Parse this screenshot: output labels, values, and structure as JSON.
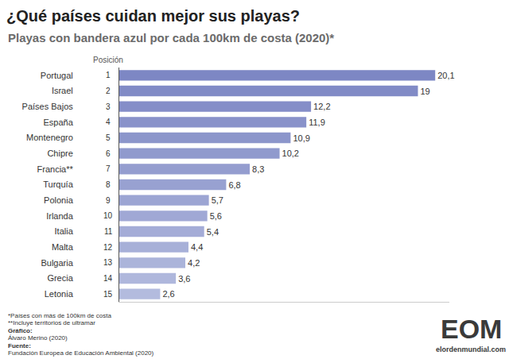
{
  "chart_data": {
    "type": "bar",
    "orientation": "horizontal",
    "title": "¿Qué países cuidan mejor sus playas?",
    "subtitle": "Playas con bandera azul por cada 100km de costa (2020)*",
    "rank_header": "Posición",
    "ranks": [
      1,
      2,
      3,
      4,
      5,
      6,
      7,
      8,
      9,
      10,
      11,
      12,
      13,
      14,
      15
    ],
    "categories": [
      "Portugal",
      "Israel",
      "Países Bajos",
      "España",
      "Montenegro",
      "Chipre",
      "Francia**",
      "Turquía",
      "Polonia",
      "Irlanda",
      "Italia",
      "Malta",
      "Bulgaria",
      "Grecia",
      "Letonia"
    ],
    "values": [
      20.1,
      19,
      12.2,
      11.9,
      10.9,
      10.2,
      8.3,
      6.8,
      5.7,
      5.6,
      5.4,
      4.4,
      4.2,
      3.6,
      2.6
    ],
    "value_labels": [
      "20,1",
      "19",
      "12,2",
      "11,9",
      "10,9",
      "10,2",
      "8,3",
      "6,8",
      "5,7",
      "5,6",
      "5,4",
      "4,4",
      "4,2",
      "3,6",
      "2,6"
    ],
    "colors": [
      "#7d87c4",
      "#818bc6",
      "#858ec8",
      "#8992ca",
      "#8c96cb",
      "#909acd",
      "#949dcf",
      "#98a1d1",
      "#9ca5d3",
      "#a0a8d5",
      "#a4acd7",
      "#a7b0d8",
      "#abb4da",
      "#afb7dc",
      "#b3bbde"
    ],
    "data_labels": true,
    "xlim": [
      0,
      21
    ],
    "xticks": [],
    "tick_labels": "y",
    "grid": false,
    "notes": [
      "*Países con más de 100km de costa",
      "**Incluye territorios de ultramar"
    ],
    "credits": {
      "graphic_label": "Gráfico:",
      "graphic": "Álvaro Merino (2020)",
      "source_label": "Fuente:",
      "source": "Fundación Europea de Educación Ambiental (2020)"
    },
    "logo": {
      "text": "EOM",
      "url": "elordenmundial.com"
    }
  }
}
